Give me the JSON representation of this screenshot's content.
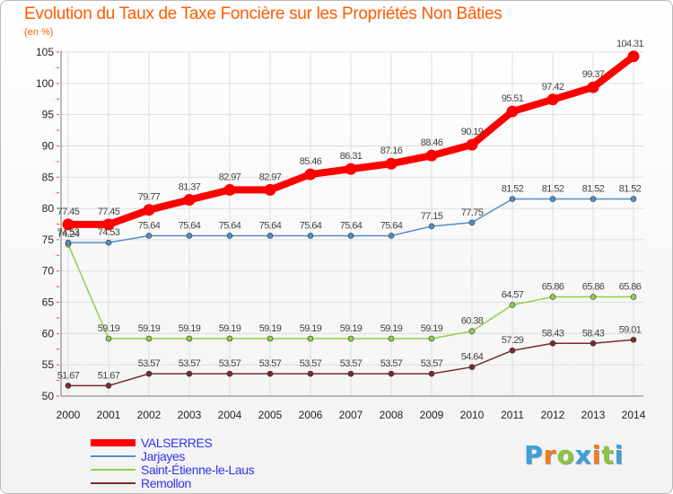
{
  "chart_data": {
    "type": "line",
    "title": "Evolution du Taux de Taxe Foncière sur les Propriétés Non Bâties",
    "unit_label": "(en %)",
    "x": [
      2000,
      2001,
      2002,
      2003,
      2004,
      2005,
      2006,
      2007,
      2008,
      2009,
      2010,
      2011,
      2012,
      2013,
      2014
    ],
    "ylim": [
      50,
      105
    ],
    "yticks": [
      50,
      55,
      60,
      65,
      70,
      75,
      80,
      85,
      90,
      95,
      100,
      105
    ],
    "grid": true,
    "legend_position": "bottom-left",
    "series": [
      {
        "name": "VALSERRES",
        "color": "#ff0000",
        "values": [
          77.45,
          77.45,
          79.77,
          81.37,
          82.97,
          82.97,
          85.46,
          86.31,
          87.16,
          88.46,
          90.19,
          95.51,
          97.42,
          99.37,
          104.31
        ],
        "labels": [
          "77.45",
          "77.45",
          "79.77",
          "81.37",
          "82.97",
          "82.97",
          "85.46",
          "86.31",
          "87.16",
          "88.46",
          "90.19",
          "95.51",
          "97.42",
          "99.37",
          "104.31"
        ]
      },
      {
        "name": "Jarjayes",
        "color": "#4f8fc7",
        "values": [
          74.53,
          74.53,
          75.64,
          75.64,
          75.64,
          75.64,
          75.64,
          75.64,
          75.64,
          77.15,
          77.75,
          81.52,
          81.52,
          81.52,
          81.52
        ],
        "labels": [
          "74.53",
          "74.53",
          "75.64",
          "75.64",
          "75.64",
          "75.64",
          "75.64",
          "75.64",
          "75.64",
          "77.15",
          "77.75",
          "81.52",
          "81.52",
          "81.52",
          "81.52"
        ]
      },
      {
        "name": "Saint-Étienne-le-Laus",
        "color": "#8fd14a",
        "values": [
          74.24,
          59.19,
          59.19,
          59.19,
          59.19,
          59.19,
          59.19,
          59.19,
          59.19,
          59.19,
          60.38,
          64.57,
          65.86,
          65.86,
          65.86
        ],
        "labels": [
          "74.24",
          "59.19",
          "59.19",
          "59.19",
          "59.19",
          "59.19",
          "59.19",
          "59.19",
          "59.19",
          "59.19",
          "60.38",
          "64.57",
          "65.86",
          "65.86",
          "65.86"
        ]
      },
      {
        "name": "Remollon",
        "color": "#7a2a2a",
        "values": [
          51.67,
          51.67,
          53.57,
          53.57,
          53.57,
          53.57,
          53.57,
          53.57,
          53.57,
          53.57,
          54.64,
          57.29,
          58.43,
          58.43,
          59.01
        ],
        "labels": [
          "51.67",
          "51.67",
          "53.57",
          "53.57",
          "53.57",
          "53.57",
          "53.57",
          "53.57",
          "53.57",
          "53.57",
          "54.64",
          "57.29",
          "58.43",
          "58.43",
          "59.01"
        ]
      }
    ]
  },
  "logo": {
    "text": "Proxiti",
    "letters": [
      "P",
      "r",
      "o",
      "x",
      "i",
      "t",
      "i"
    ],
    "colors": [
      "#3aa0e0",
      "#f07d1e",
      "#8bc53f",
      "#3aa0e0",
      "#f07d1e",
      "#8bc53f",
      "#3aa0e0"
    ]
  }
}
